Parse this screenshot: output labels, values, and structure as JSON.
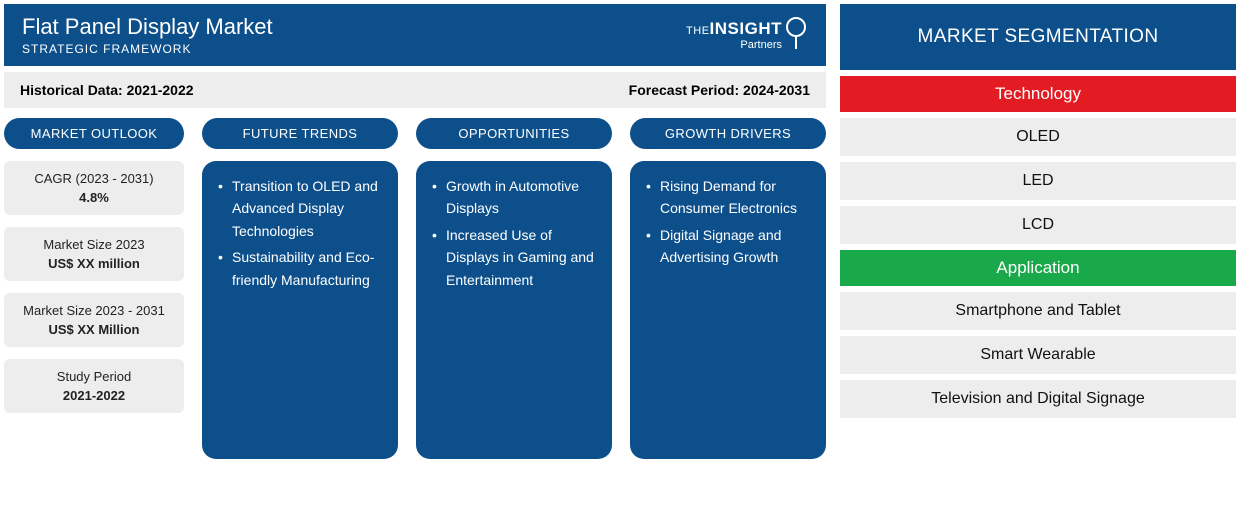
{
  "colors": {
    "brand_blue": "#0d4f8b",
    "panel_grey": "#ededed",
    "red": "#e31b23",
    "green": "#1aa94a",
    "white": "#ffffff",
    "text": "#111111"
  },
  "header": {
    "title": "Flat Panel Display Market",
    "subtitle": "STRATEGIC FRAMEWORK",
    "logo_prefix": "THE",
    "logo_word": "INSIGHT",
    "logo_mark": "⦀",
    "logo_suffix": "Partners"
  },
  "period": {
    "historical_label": "Historical Data:",
    "historical_value": "2021-2022",
    "forecast_label": "Forecast Period:",
    "forecast_value": "2024-2031"
  },
  "outlook": {
    "heading": "MARKET OUTLOOK",
    "stats": [
      {
        "label": "CAGR (2023 - 2031)",
        "value": "4.8%"
      },
      {
        "label": "Market Size 2023",
        "value": "US$ XX million"
      },
      {
        "label": "Market Size 2023 - 2031",
        "value": "US$ XX Million"
      },
      {
        "label": "Study Period",
        "value": "2021-2022"
      }
    ]
  },
  "trends": {
    "heading": "FUTURE TRENDS",
    "items": [
      "Transition to OLED and Advanced Display Technologies",
      "Sustainability and Eco-friendly Manufacturing"
    ]
  },
  "opportunities": {
    "heading": "OPPORTUNITIES",
    "items": [
      "Growth in Automotive Displays",
      "Increased Use of Displays in Gaming and Entertainment"
    ]
  },
  "drivers": {
    "heading": "GROWTH DRIVERS",
    "items": [
      "Rising Demand for Consumer Electronics",
      "Digital Signage and Advertising Growth"
    ]
  },
  "segmentation": {
    "heading": "MARKET SEGMENTATION",
    "groups": [
      {
        "label": "Technology",
        "color": "red",
        "items": [
          "OLED",
          "LED",
          "LCD"
        ]
      },
      {
        "label": "Application",
        "color": "green",
        "items": [
          "Smartphone and Tablet",
          "Smart Wearable",
          "Television and Digital Signage"
        ]
      }
    ]
  }
}
